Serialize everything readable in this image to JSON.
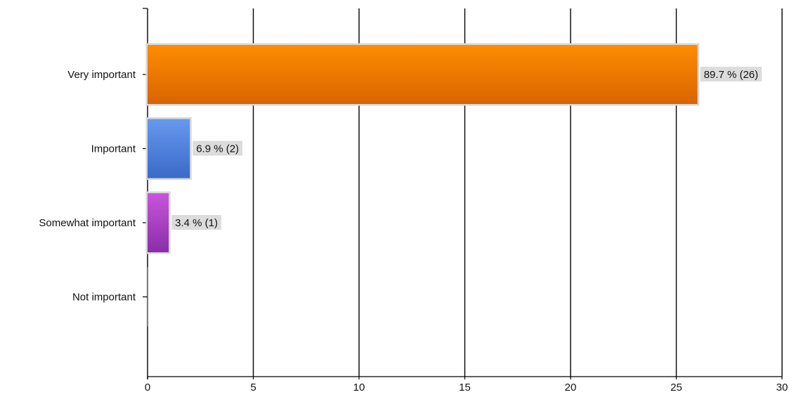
{
  "chart_data": {
    "type": "bar",
    "orientation": "horizontal",
    "categories": [
      "Very important",
      "Important",
      "Somewhat important",
      "Not important"
    ],
    "values": [
      26,
      2,
      1,
      0
    ],
    "data_labels": [
      "89.7 % (26)",
      "6.9 % (2)",
      "3.4 % (1)",
      ""
    ],
    "bar_colors": [
      {
        "top": "#ff8c00",
        "bottom": "#d86400"
      },
      {
        "top": "#6699ee",
        "bottom": "#3b6ac9"
      },
      {
        "top": "#c855dc",
        "bottom": "#8a2ea8"
      },
      {
        "top": "#cccccc",
        "bottom": "#999999"
      }
    ],
    "x_ticks": [
      "0",
      "5",
      "10",
      "15",
      "20",
      "25",
      "30"
    ],
    "xlim": [
      0,
      30
    ],
    "grid": true,
    "title": "",
    "xlabel": "",
    "ylabel": ""
  }
}
